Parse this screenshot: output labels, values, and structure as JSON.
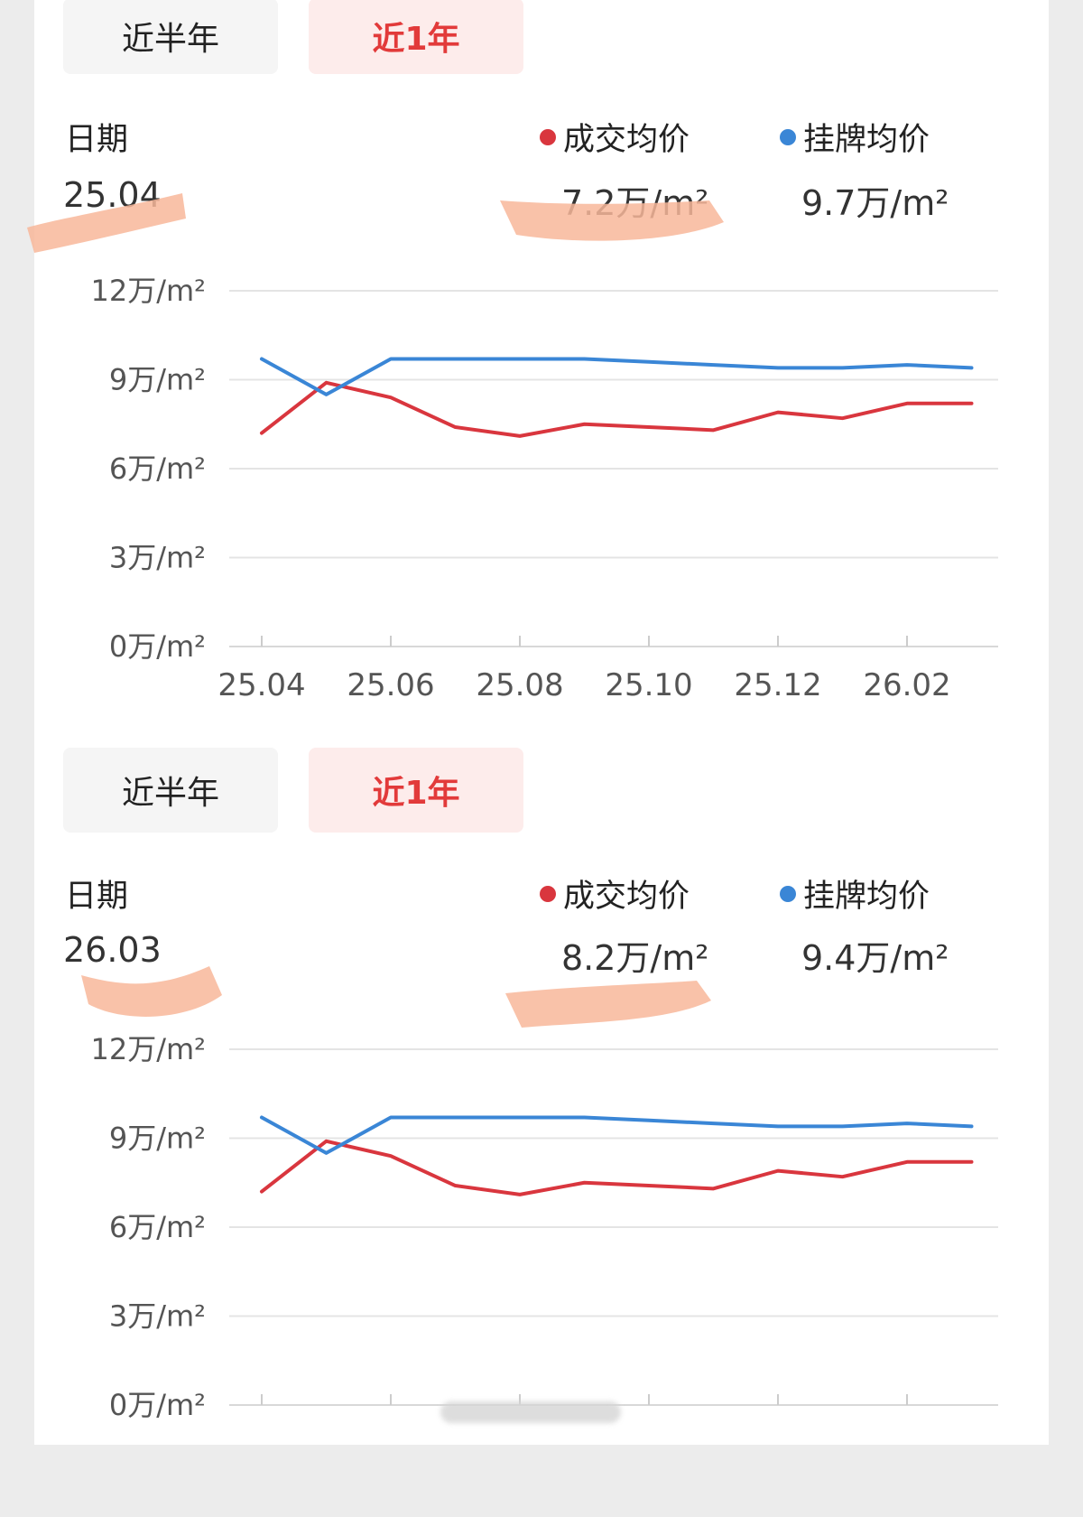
{
  "colors": {
    "deal": "#d9363e",
    "list": "#3a86d6",
    "grid": "#e4e4e4",
    "accent": "#e23a3a",
    "highlight": "#f8b79a"
  },
  "unit": "万/m²",
  "panels": [
    {
      "tabs": {
        "half_year": "近半年",
        "one_year": "近1年"
      },
      "date_label": "日期",
      "date_value": "25.04",
      "deal_label": "成交均价",
      "deal_value": "7.2万/m²",
      "list_label": "挂牌均价",
      "list_value": "9.7万/m²"
    },
    {
      "tabs": {
        "half_year": "近半年",
        "one_year": "近1年"
      },
      "date_label": "日期",
      "date_value": "26.03",
      "deal_label": "成交均价",
      "deal_value": "8.2万/m²",
      "list_label": "挂牌均价",
      "list_value": "9.4万/m²"
    }
  ],
  "chart_data": [
    {
      "type": "line",
      "x": [
        "25.04",
        "25.05",
        "25.06",
        "25.07",
        "25.08",
        "25.09",
        "25.10",
        "25.11",
        "25.12",
        "26.01",
        "26.02",
        "26.03"
      ],
      "x_tick_labels": [
        "25.04",
        "25.06",
        "25.08",
        "25.10",
        "25.12",
        "26.02"
      ],
      "y_tick_labels": [
        "0万/m²",
        "3万/m²",
        "6万/m²",
        "9万/m²",
        "12万/m²"
      ],
      "ylim": [
        0,
        12
      ],
      "series": [
        {
          "name": "成交均价",
          "values": [
            7.2,
            8.9,
            8.4,
            7.4,
            7.1,
            7.5,
            7.4,
            7.3,
            7.9,
            7.7,
            8.2,
            8.2
          ]
        },
        {
          "name": "挂牌均价",
          "values": [
            9.7,
            8.5,
            9.7,
            9.7,
            9.7,
            9.7,
            9.6,
            9.5,
            9.4,
            9.4,
            9.5,
            9.4
          ]
        }
      ],
      "grid": true
    },
    {
      "type": "line",
      "x": [
        "25.04",
        "25.05",
        "25.06",
        "25.07",
        "25.08",
        "25.09",
        "25.10",
        "25.11",
        "25.12",
        "26.01",
        "26.02",
        "26.03"
      ],
      "y_tick_labels": [
        "0万/m²",
        "3万/m²",
        "6万/m²",
        "9万/m²",
        "12万/m²"
      ],
      "ylim": [
        0,
        12
      ],
      "series": [
        {
          "name": "成交均价",
          "values": [
            7.2,
            8.9,
            8.4,
            7.4,
            7.1,
            7.5,
            7.4,
            7.3,
            7.9,
            7.7,
            8.2,
            8.2
          ]
        },
        {
          "name": "挂牌均价",
          "values": [
            9.7,
            8.5,
            9.7,
            9.7,
            9.7,
            9.7,
            9.6,
            9.5,
            9.4,
            9.4,
            9.5,
            9.4
          ]
        }
      ],
      "grid": true
    }
  ]
}
